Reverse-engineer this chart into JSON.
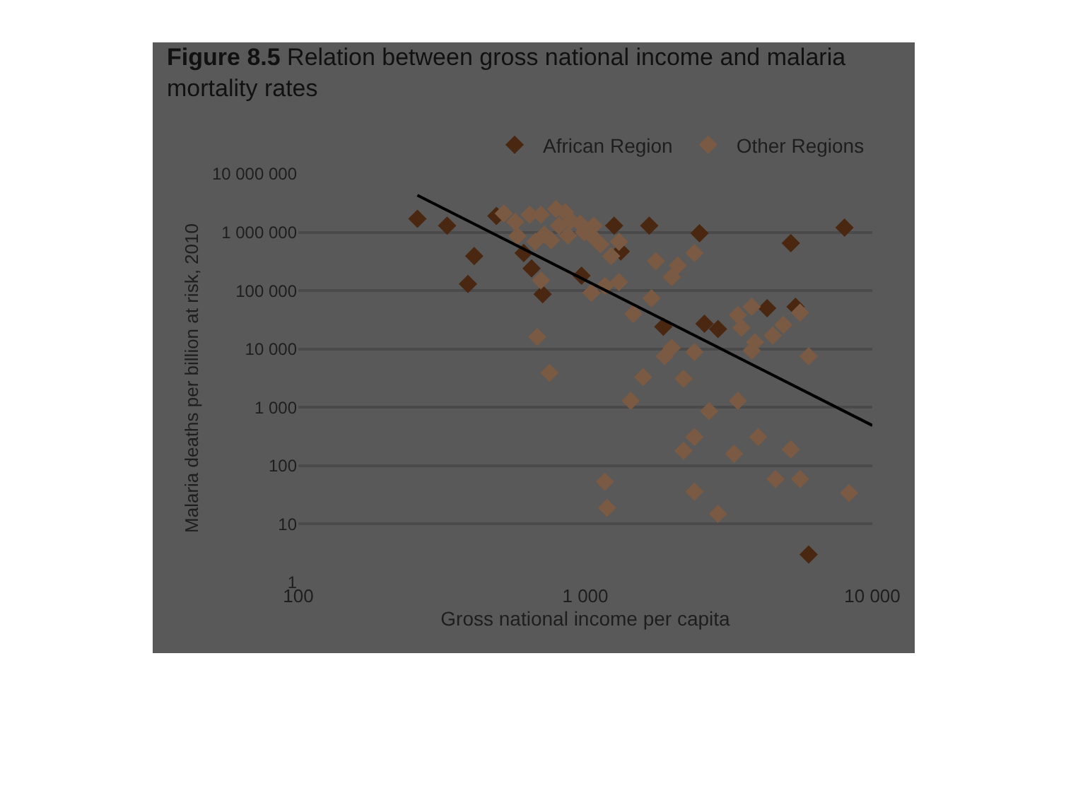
{
  "chart_data": {
    "type": "scatter",
    "title": "Figure 8.5 Relation between gross national income and malaria mortality rates",
    "xlabel": "Gross national income per capita",
    "ylabel": "Malaria deaths per billion at risk, 2010",
    "log": "xy",
    "grid": "y",
    "legend": "top right",
    "marker": "diamond",
    "xlim": [
      100,
      10000
    ],
    "xticks": [
      100,
      {
        "value": 1000,
        "label": "1 000"
      },
      {
        "value": 10000,
        "label": "10 000"
      }
    ],
    "ylim": [
      1,
      10000000
    ],
    "yticks": [
      1,
      10,
      100,
      {
        "value": 1000,
        "label": "1 000"
      },
      {
        "value": 10000,
        "label": "10 000"
      },
      {
        "value": 100000,
        "label": "100 000"
      },
      {
        "value": 1000000,
        "label": "1 000 000"
      },
      {
        "value": 10000000,
        "label": "10 000 000"
      }
    ],
    "series": [
      {
        "name": "African Region",
        "color": "#4a2710",
        "x": [
          260,
          330,
          410,
          390,
          610,
          650,
          710,
          970,
          1260,
          1670,
          2500,
          1330,
          1870,
          2600,
          2900,
          4300,
          5400,
          5200,
          8000,
          6000,
          490
        ],
        "values": [
          1700000,
          1300000,
          390000,
          130000,
          440000,
          240000,
          87000,
          180000,
          1300000,
          1300000,
          960000,
          470000,
          24000,
          27000,
          22000,
          50000,
          53000,
          650000,
          1200000,
          3,
          1900000
        ]
      },
      {
        "name": "Other Regions",
        "color": "#7a5a42",
        "x": [
          680,
          750,
          700,
          1050,
          1170,
          1310,
          1470,
          1700,
          1760,
          2100,
          2000,
          2400,
          1130,
          1230,
          1310,
          1080,
          2000,
          1890,
          2400,
          1590,
          2200,
          1440,
          2700,
          3400,
          3800,
          3400,
          3500,
          3900,
          3800,
          4500,
          4900,
          5600,
          6000,
          2400,
          2200,
          4000,
          3300,
          5200,
          1170,
          1190,
          2400,
          2900,
          4600,
          5600,
          8300,
          520,
          570,
          640,
          700,
          790,
          850,
          580,
          720,
          810,
          890,
          960,
          670,
          760,
          870,
          990,
          1070
        ],
        "values": [
          16000,
          3900,
          150000,
          92000,
          120000,
          140000,
          40000,
          74000,
          320000,
          270000,
          170000,
          440000,
          620000,
          390000,
          690000,
          770000,
          10500,
          7500,
          8900,
          3300,
          3100,
          1300,
          860,
          1300,
          53000,
          38000,
          23000,
          13000,
          9400,
          17000,
          26000,
          42000,
          7500,
          310,
          180,
          310,
          160,
          190,
          53,
          19,
          36,
          15,
          59,
          59,
          34,
          2100000,
          1500000,
          2000000,
          2000000,
          2500000,
          2200000,
          860000,
          910000,
          1300000,
          1600000,
          1400000,
          690000,
          730000,
          870000,
          1000000,
          1300000
        ]
      },
      {
        "type": "line",
        "marker": "none",
        "color": "#000000",
        "x": [
          260,
          10000
        ],
        "values": [
          4300000,
          490
        ]
      }
    ]
  }
}
